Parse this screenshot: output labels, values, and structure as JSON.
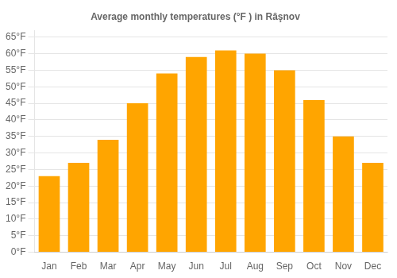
{
  "chart_data": {
    "type": "bar",
    "title": "Average monthly temperatures (°F ) in Râşnov",
    "categories": [
      "Jan",
      "Feb",
      "Mar",
      "Apr",
      "May",
      "Jun",
      "Jul",
      "Aug",
      "Sep",
      "Oct",
      "Nov",
      "Dec"
    ],
    "values": [
      23.0,
      27.0,
      34.0,
      45.0,
      54.0,
      59.0,
      61.0,
      60.0,
      55.0,
      46.0,
      35.0,
      27.0
    ],
    "color": "#FFA500",
    "ylim": [
      0,
      67
    ],
    "yticks": [
      {
        "value": 0,
        "label": "0°F"
      },
      {
        "value": 5,
        "label": "5°F"
      },
      {
        "value": 10,
        "label": "10°F"
      },
      {
        "value": 15,
        "label": "15°F"
      },
      {
        "value": 20,
        "label": "20°F"
      },
      {
        "value": 25,
        "label": "25°F"
      },
      {
        "value": 30,
        "label": "30°F"
      },
      {
        "value": 35,
        "label": "35°F"
      },
      {
        "value": 40,
        "label": "40°F"
      },
      {
        "value": 45,
        "label": "45°F"
      },
      {
        "value": 50,
        "label": "50°F"
      },
      {
        "value": 55,
        "label": "55°F"
      },
      {
        "value": 60,
        "label": "60°F"
      },
      {
        "value": 65,
        "label": "65°F"
      }
    ],
    "grid": true
  }
}
